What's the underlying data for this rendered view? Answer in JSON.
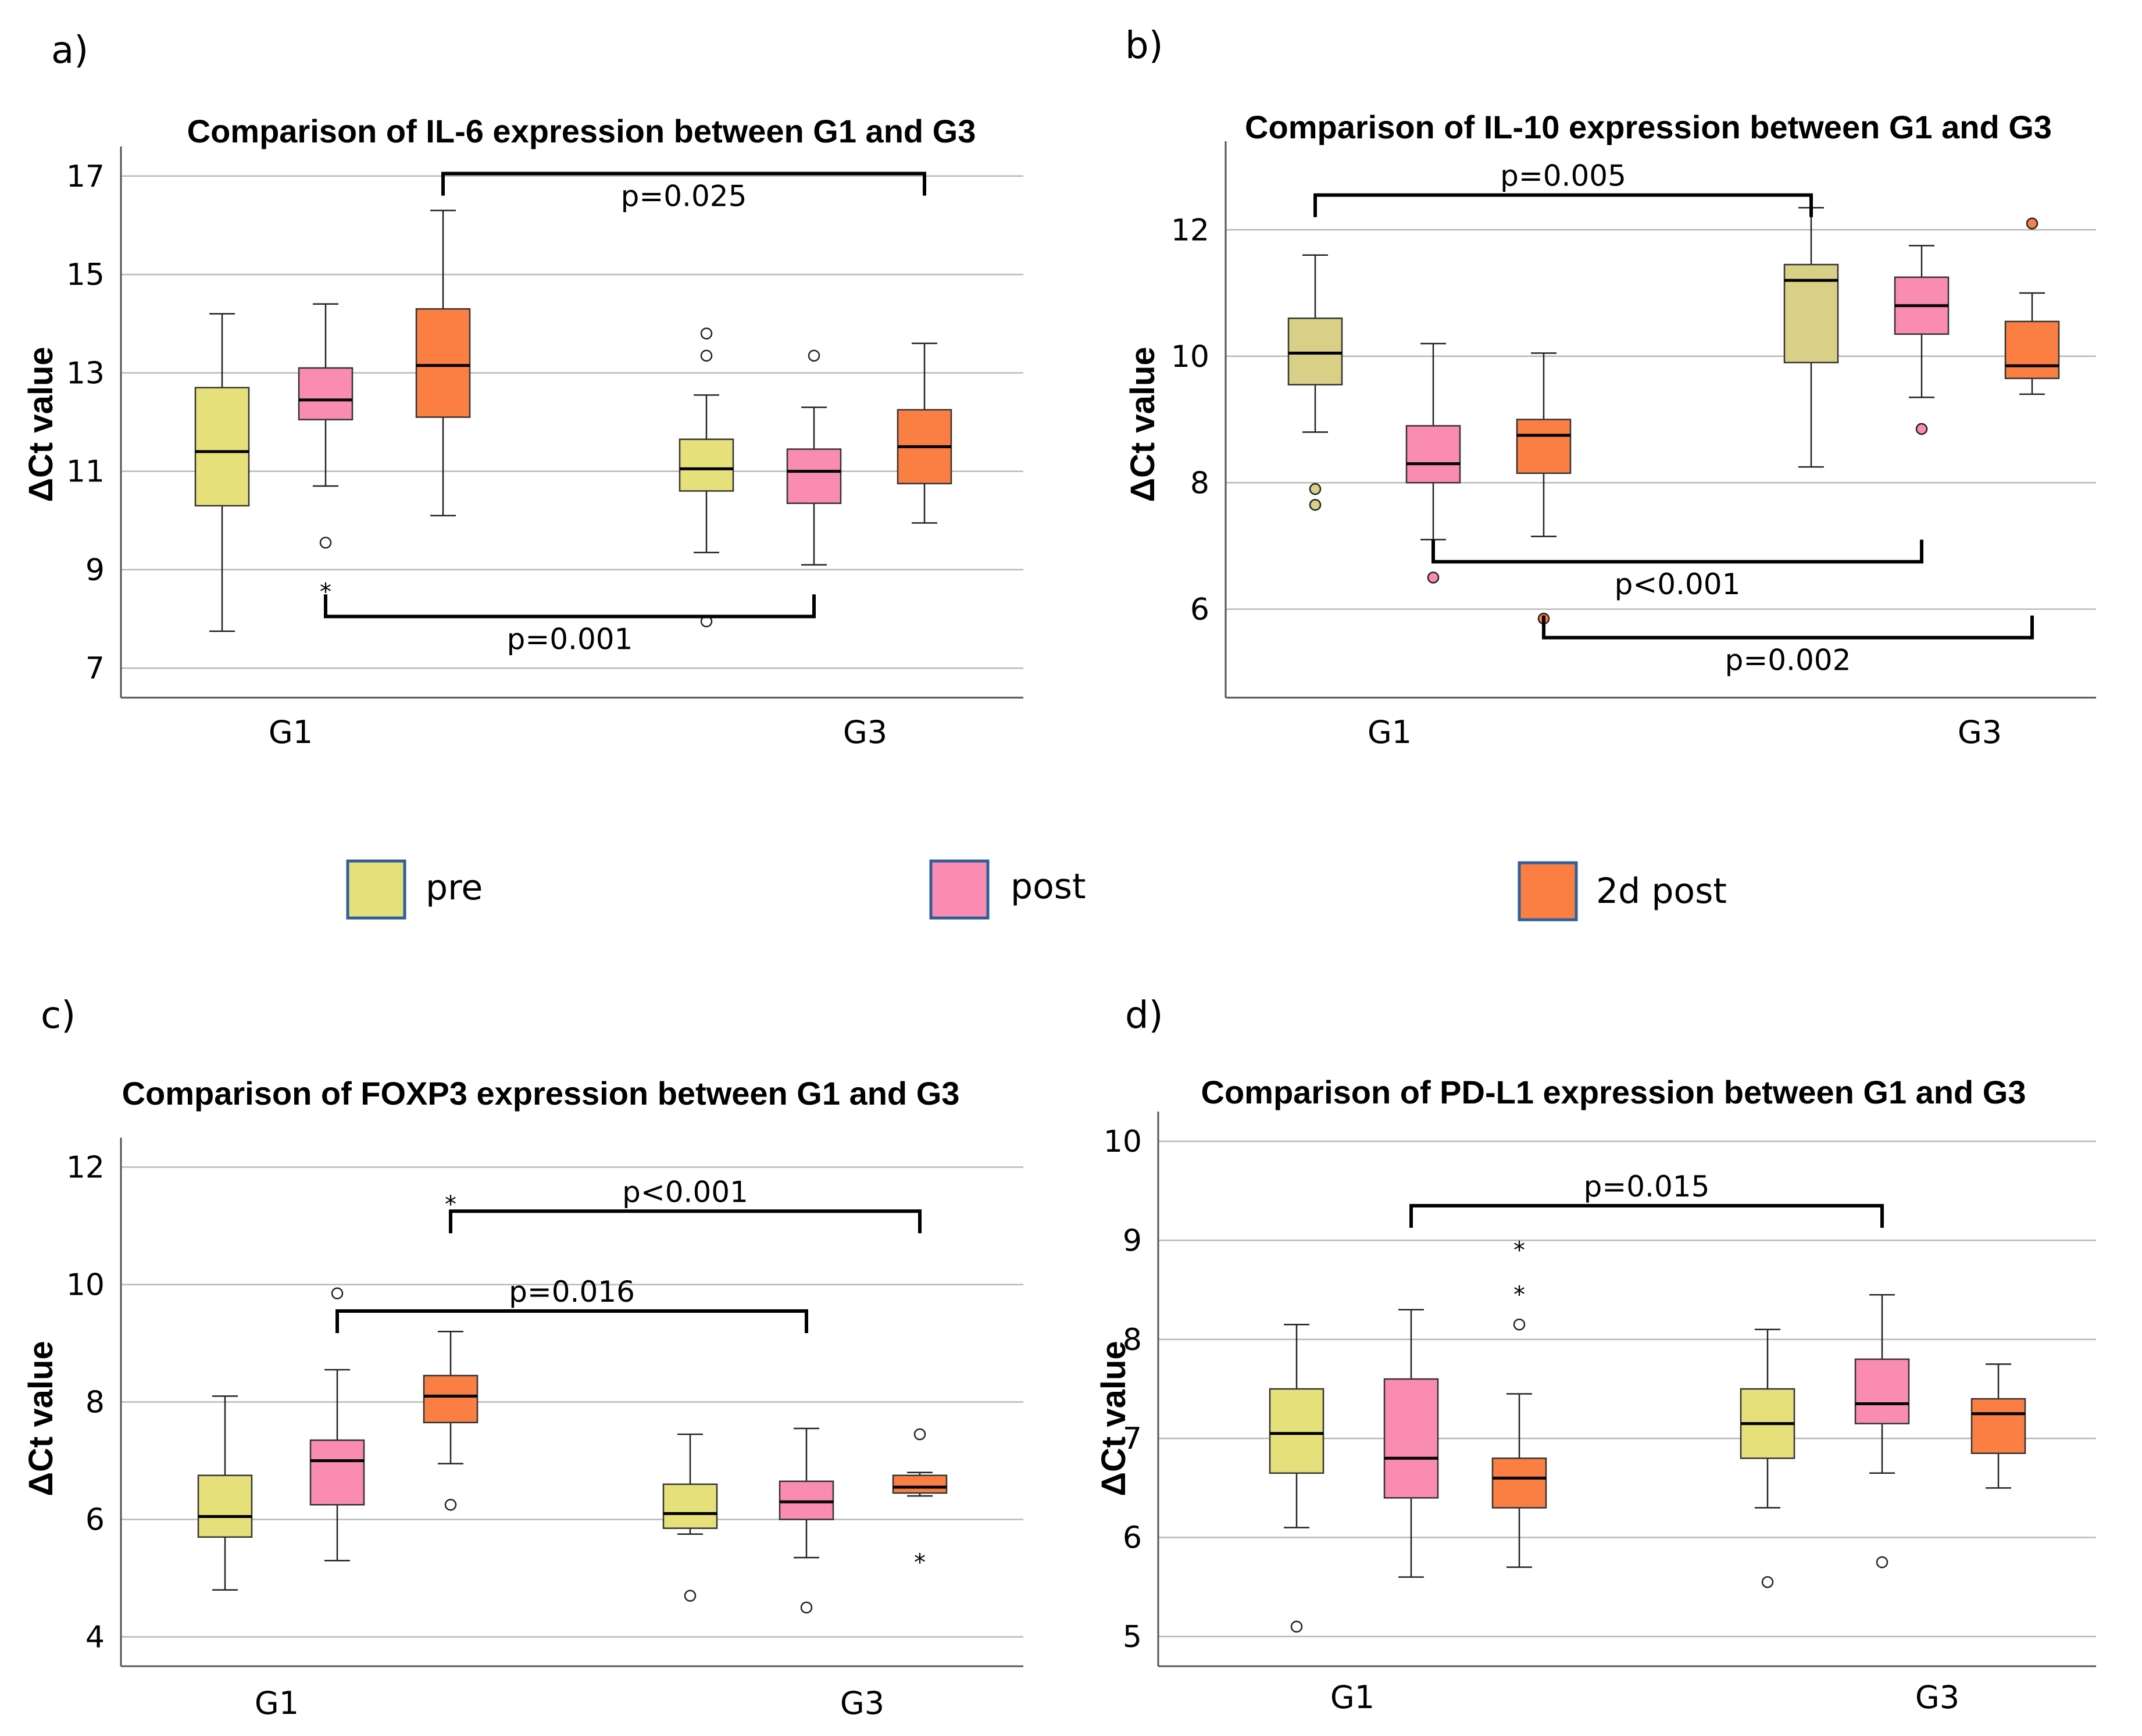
{
  "colors": {
    "pre": "#e6e07a",
    "pre_b": "#d8d087",
    "post": "#fb8cb1",
    "post2d": "#fb7f43",
    "legend_border": "#2d5f9a",
    "grid": "#b9b9b9"
  },
  "legend": [
    {
      "key": "pre",
      "label": "pre"
    },
    {
      "key": "post",
      "label": "post"
    },
    {
      "key": "post2d",
      "label": "2d post"
    }
  ],
  "chart_data": [
    {
      "id": "a",
      "panel_label": "a)",
      "type": "box",
      "title": "Comparison of IL-6 expression between G1 and G3",
      "ylabel": "ΔCt value",
      "categories": [
        "G1",
        "G3"
      ],
      "ylim": [
        6.4,
        17.6
      ],
      "yticks": [
        7,
        9,
        11,
        13,
        15,
        17
      ],
      "grid": true,
      "series_colors": [
        "pre",
        "post",
        "post2d"
      ],
      "boxes": [
        {
          "group": "G1",
          "series": "pre",
          "min": 7.75,
          "q1": 10.3,
          "median": 11.4,
          "q3": 12.7,
          "max": 14.2,
          "outliers": [],
          "extremes": []
        },
        {
          "group": "G1",
          "series": "post",
          "min": 10.7,
          "q1": 12.05,
          "median": 12.45,
          "q3": 13.1,
          "max": 14.4,
          "outliers": [
            9.55
          ],
          "extremes": [
            8.65
          ]
        },
        {
          "group": "G1",
          "series": "post2d",
          "min": 10.1,
          "q1": 12.1,
          "median": 13.15,
          "q3": 14.3,
          "max": 16.3,
          "outliers": [],
          "extremes": []
        },
        {
          "group": "G3",
          "series": "pre",
          "min": 9.35,
          "q1": 10.6,
          "median": 11.05,
          "q3": 11.65,
          "max": 12.55,
          "outliers": [
            13.8,
            13.35,
            7.95
          ],
          "extremes": []
        },
        {
          "group": "G3",
          "series": "post",
          "min": 9.1,
          "q1": 10.35,
          "median": 11.0,
          "q3": 11.45,
          "max": 12.3,
          "outliers": [
            13.35
          ],
          "extremes": []
        },
        {
          "group": "G3",
          "series": "post2d",
          "min": 9.95,
          "q1": 10.75,
          "median": 11.5,
          "q3": 12.25,
          "max": 13.6,
          "outliers": [],
          "extremes": []
        }
      ],
      "comparisons": [
        {
          "from_box": 2,
          "to_box": 5,
          "y": 17.05,
          "label": "p=0.025",
          "orient": "down",
          "label_pos": "below"
        },
        {
          "from_box": 1,
          "to_box": 4,
          "y": 8.05,
          "label": "p=0.001",
          "orient": "up",
          "label_pos": "below"
        }
      ]
    },
    {
      "id": "b",
      "panel_label": "b)",
      "type": "box",
      "title": "Comparison of IL-10 expression between G1 and G3",
      "ylabel": "ΔCt value",
      "categories": [
        "G1",
        "G3"
      ],
      "ylim": [
        4.6,
        13.4
      ],
      "yticks": [
        6,
        8,
        10,
        12
      ],
      "grid": true,
      "series_colors": [
        "pre_b",
        "post",
        "post2d"
      ],
      "boxes": [
        {
          "group": "G1",
          "series": "pre",
          "min": 8.8,
          "q1": 9.55,
          "median": 10.05,
          "q3": 10.6,
          "max": 11.6,
          "outliers": [
            7.9,
            7.65
          ],
          "extremes": []
        },
        {
          "group": "G1",
          "series": "post",
          "min": 7.1,
          "q1": 8.0,
          "median": 8.3,
          "q3": 8.9,
          "max": 10.2,
          "outliers": [
            6.5
          ],
          "extremes": []
        },
        {
          "group": "G1",
          "series": "post2d",
          "min": 7.15,
          "q1": 8.15,
          "median": 8.75,
          "q3": 9.0,
          "max": 10.05,
          "outliers": [
            5.85
          ],
          "extremes": []
        },
        {
          "group": "G3",
          "series": "pre",
          "min": 8.25,
          "q1": 9.9,
          "median": 11.2,
          "q3": 11.45,
          "max": 12.35,
          "outliers": [],
          "extremes": []
        },
        {
          "group": "G3",
          "series": "post",
          "min": 9.35,
          "q1": 10.35,
          "median": 10.8,
          "q3": 11.25,
          "max": 11.75,
          "outliers": [
            8.85
          ],
          "extremes": []
        },
        {
          "group": "G3",
          "series": "post2d",
          "min": 9.4,
          "q1": 9.65,
          "median": 9.85,
          "q3": 10.55,
          "max": 11.0,
          "outliers": [
            12.1
          ],
          "extremes": []
        }
      ],
      "comparisons": [
        {
          "from_box": 0,
          "to_box": 3,
          "y": 12.55,
          "label": "p=0.005",
          "orient": "down",
          "label_pos": "above"
        },
        {
          "from_box": 1,
          "to_box": 4,
          "y": 6.75,
          "label": "p<0.001",
          "orient": "up",
          "label_pos": "below"
        },
        {
          "from_box": 2,
          "to_box": 5,
          "y": 5.55,
          "label": "p=0.002",
          "orient": "up",
          "label_pos": "below"
        }
      ]
    },
    {
      "id": "c",
      "panel_label": "c)",
      "type": "box",
      "title": "Comparison of FOXP3 expression between G1 and G3",
      "ylabel": "ΔCt value",
      "categories": [
        "G1",
        "G3"
      ],
      "ylim": [
        3.5,
        12.5
      ],
      "yticks": [
        4,
        6,
        8,
        10,
        12
      ],
      "grid": true,
      "series_colors": [
        "pre",
        "post",
        "post2d"
      ],
      "boxes": [
        {
          "group": "G1",
          "series": "pre",
          "min": 4.8,
          "q1": 5.7,
          "median": 6.05,
          "q3": 6.75,
          "max": 8.1,
          "outliers": [],
          "extremes": []
        },
        {
          "group": "G1",
          "series": "post",
          "min": 5.3,
          "q1": 6.25,
          "median": 7.0,
          "q3": 7.35,
          "max": 8.55,
          "outliers": [
            9.85
          ],
          "extremes": []
        },
        {
          "group": "G1",
          "series": "post2d",
          "min": 6.95,
          "q1": 7.65,
          "median": 8.1,
          "q3": 8.45,
          "max": 9.2,
          "outliers": [
            6.25
          ],
          "extremes": [
            11.45
          ]
        },
        {
          "group": "G3",
          "series": "pre",
          "min": 5.75,
          "q1": 5.85,
          "median": 6.1,
          "q3": 6.6,
          "max": 7.45,
          "outliers": [
            4.7
          ],
          "extremes": []
        },
        {
          "group": "G3",
          "series": "post",
          "min": 5.35,
          "q1": 6.0,
          "median": 6.3,
          "q3": 6.65,
          "max": 7.55,
          "outliers": [
            4.5
          ],
          "extremes": []
        },
        {
          "group": "G3",
          "series": "post2d",
          "min": 6.4,
          "q1": 6.45,
          "median": 6.55,
          "q3": 6.75,
          "max": 6.8,
          "outliers": [
            7.45
          ],
          "extremes": [
            5.35
          ]
        }
      ],
      "comparisons": [
        {
          "from_box": 2,
          "to_box": 5,
          "y": 11.25,
          "label": "p<0.001",
          "orient": "down",
          "label_pos": "above"
        },
        {
          "from_box": 1,
          "to_box": 4,
          "y": 9.55,
          "label": "p=0.016",
          "orient": "down",
          "label_pos": "above"
        }
      ]
    },
    {
      "id": "d",
      "panel_label": "d)",
      "type": "box",
      "title": "Comparison of PD-L1 expression between G1 and G3",
      "ylabel": "ΔCt value",
      "categories": [
        "G1",
        "G3"
      ],
      "ylim": [
        4.7,
        10.3
      ],
      "yticks": [
        5,
        6,
        7,
        8,
        9,
        10
      ],
      "grid": true,
      "series_colors": [
        "pre",
        "post",
        "post2d"
      ],
      "boxes": [
        {
          "group": "G1",
          "series": "pre",
          "min": 6.1,
          "q1": 6.65,
          "median": 7.05,
          "q3": 7.5,
          "max": 8.15,
          "outliers": [
            5.1
          ],
          "extremes": []
        },
        {
          "group": "G1",
          "series": "post",
          "min": 5.6,
          "q1": 6.4,
          "median": 6.8,
          "q3": 7.6,
          "max": 8.3,
          "outliers": [],
          "extremes": []
        },
        {
          "group": "G1",
          "series": "post2d",
          "min": 5.7,
          "q1": 6.3,
          "median": 6.6,
          "q3": 6.8,
          "max": 7.45,
          "outliers": [
            8.15
          ],
          "extremes": [
            8.95,
            8.5
          ]
        },
        {
          "group": "G3",
          "series": "pre",
          "min": 6.3,
          "q1": 6.8,
          "median": 7.15,
          "q3": 7.5,
          "max": 8.1,
          "outliers": [
            5.55
          ],
          "extremes": []
        },
        {
          "group": "G3",
          "series": "post",
          "min": 6.65,
          "q1": 7.15,
          "median": 7.35,
          "q3": 7.8,
          "max": 8.45,
          "outliers": [
            5.75
          ],
          "extremes": []
        },
        {
          "group": "G3",
          "series": "post2d",
          "min": 6.5,
          "q1": 6.85,
          "median": 7.25,
          "q3": 7.4,
          "max": 7.75,
          "outliers": [],
          "extremes": []
        }
      ],
      "comparisons": [
        {
          "from_box": 1,
          "to_box": 4,
          "y": 9.35,
          "label": "p=0.015",
          "orient": "down",
          "label_pos": "above"
        }
      ]
    }
  ]
}
